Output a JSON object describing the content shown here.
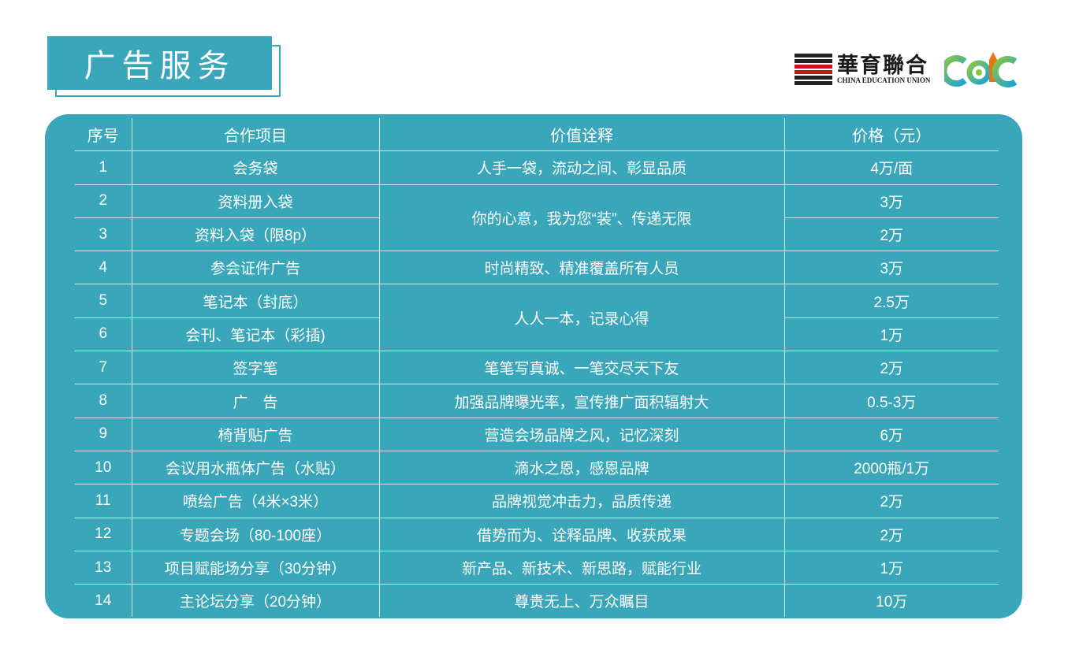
{
  "title": "广告服务",
  "logo": {
    "cn": "華育聯合",
    "en": "CHINA EDUCATION UNION",
    "mark": "CCEC"
  },
  "colors": {
    "teal": "#3aa6b9",
    "red": "#c8161d"
  },
  "table": {
    "headers": [
      "序号",
      "合作项目",
      "价值诠释",
      "价格（元）"
    ],
    "rows": [
      {
        "no": "1",
        "item": "会务袋",
        "value": "人手一袋，流动之间、彰显品质",
        "span": 1,
        "price": "4万/面"
      },
      {
        "no": "2",
        "item": "资料册入袋",
        "value": "你的心意，我为您“装”、传递无限",
        "span": 2,
        "price": "3万"
      },
      {
        "no": "3",
        "item": "资料入袋（限8p）",
        "value": null,
        "span": 0,
        "price": "2万"
      },
      {
        "no": "4",
        "item": "参会证件广告",
        "value": "时尚精致、精准覆盖所有人员",
        "span": 1,
        "price": "3万"
      },
      {
        "no": "5",
        "item": "笔记本（封底）",
        "value": "人人一本，记录心得",
        "span": 2,
        "price": "2.5万"
      },
      {
        "no": "6",
        "item": "会刊、笔记本（彩插)",
        "value": null,
        "span": 0,
        "price": "1万"
      },
      {
        "no": "7",
        "item": "签字笔",
        "value": "笔笔写真诚、一笔交尽天下友",
        "span": 1,
        "price": "2万"
      },
      {
        "no": "8",
        "item": "广　告",
        "value": "加强品牌曝光率，宣传推广面积辐射大",
        "span": 1,
        "price": "0.5-3万"
      },
      {
        "no": "9",
        "item": "椅背贴广告",
        "value": "营造会场品牌之风，记忆深刻",
        "span": 1,
        "price": "6万"
      },
      {
        "no": "10",
        "item": "会议用水瓶体广告（水贴）",
        "value": "滴水之恩，感恩品牌",
        "span": 1,
        "price": "2000瓶/1万"
      },
      {
        "no": "11",
        "item": "喷绘广告（4米×3米）",
        "value": "品牌视觉冲击力，品质传递",
        "span": 1,
        "price": "2万"
      },
      {
        "no": "12",
        "item": "专题会场（80-100座）",
        "value": "借势而为、诠释品牌、收获成果",
        "span": 1,
        "price": "2万"
      },
      {
        "no": "13",
        "item": "项目赋能场分享（30分钟）",
        "value": "新产品、新技术、新思路，赋能行业",
        "span": 1,
        "price": "1万"
      },
      {
        "no": "14",
        "item": "主论坛分享（20分钟）",
        "value": "尊贵无上、万众瞩目",
        "span": 1,
        "price": "10万"
      }
    ]
  }
}
